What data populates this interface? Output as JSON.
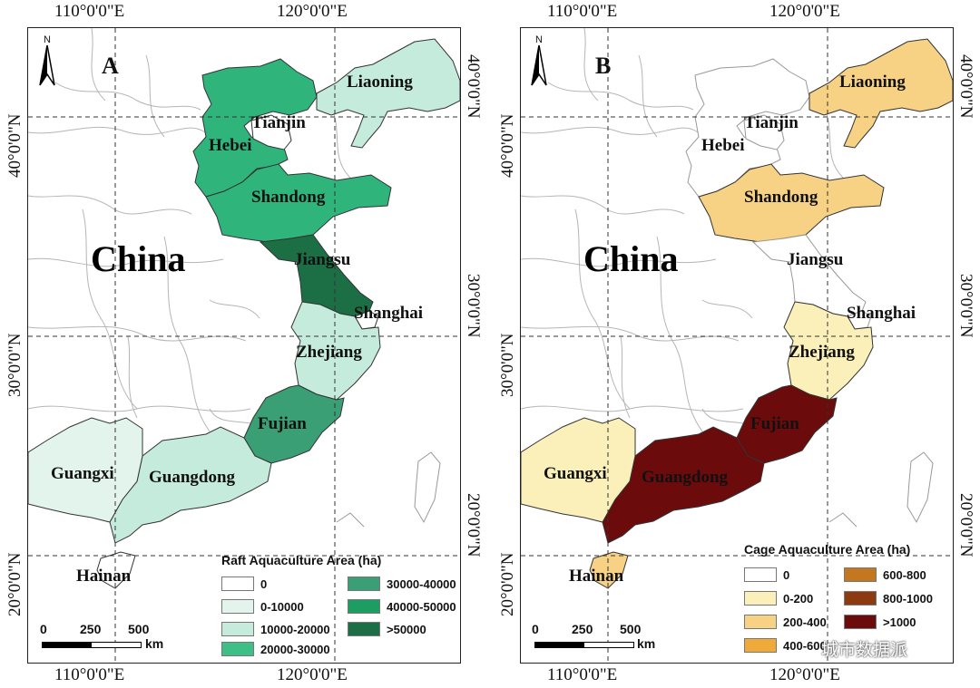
{
  "coords": {
    "lon_left": "110°0'0\"E",
    "lon_right": "120°0'0\"E",
    "lat_40": "40°0'0\"N",
    "lat_30": "30°0'0\"N",
    "lat_20": "20°0'0\"N"
  },
  "north_arrow": "N",
  "country_label": "China",
  "scale": {
    "ticks": [
      "0",
      "250",
      "500"
    ],
    "unit": "km"
  },
  "panel_a": {
    "letter": "A",
    "legend_title": "Raft Aquaculture Area (ha)",
    "legend": [
      {
        "label": "0",
        "color": "#ffffff"
      },
      {
        "label": "0-10000",
        "color": "#e3f4ec"
      },
      {
        "label": "10000-20000",
        "color": "#c5ebdc"
      },
      {
        "label": "20000-30000",
        "color": "#3dbf86"
      },
      {
        "label": "30000-40000",
        "color": "#3a9f74"
      },
      {
        "label": "40000-50000",
        "color": "#1e9d63"
      },
      {
        "label": ">50000",
        "color": "#1c6e44"
      }
    ],
    "provinces": {
      "liaoning": {
        "label": "Liaoning",
        "color": "#c5ebdc"
      },
      "tianjin": {
        "label": "Tianjin",
        "color": "#ffffff"
      },
      "hebei": {
        "label": "Hebei",
        "color": "#2fb47c"
      },
      "shandong": {
        "label": "Shandong",
        "color": "#2fb47c"
      },
      "jiangsu": {
        "label": "Jiangsu",
        "color": "#1c6e44"
      },
      "shanghai": {
        "label": "Shanghai",
        "color": "#ffffff"
      },
      "zhejiang": {
        "label": "Zhejiang",
        "color": "#c5ebdc"
      },
      "fujian": {
        "label": "Fujian",
        "color": "#3a9f74"
      },
      "guangdong": {
        "label": "Guangdong",
        "color": "#c5ebdc"
      },
      "guangxi": {
        "label": "Guangxi",
        "color": "#e3f4ec"
      },
      "hainan": {
        "label": "Hainan",
        "color": "#ffffff"
      }
    }
  },
  "panel_b": {
    "letter": "B",
    "legend_title": "Cage Aquaculture Area (ha)",
    "legend": [
      {
        "label": "0",
        "color": "#ffffff"
      },
      {
        "label": "0-200",
        "color": "#fbefba"
      },
      {
        "label": "200-400",
        "color": "#f7d184"
      },
      {
        "label": "400-600",
        "color": "#efaa3a"
      },
      {
        "label": "600-800",
        "color": "#c3771f"
      },
      {
        "label": "800-1000",
        "color": "#8e3a10"
      },
      {
        "label": ">1000",
        "color": "#6b0b0b"
      }
    ],
    "provinces": {
      "liaoning": {
        "label": "Liaoning",
        "color": "#f7d184"
      },
      "tianjin": {
        "label": "Tianjin",
        "color": "#ffffff"
      },
      "hebei": {
        "label": "Hebei",
        "color": "#ffffff"
      },
      "shandong": {
        "label": "Shandong",
        "color": "#f7d184"
      },
      "jiangsu": {
        "label": "Jiangsu",
        "color": "#ffffff"
      },
      "shanghai": {
        "label": "Shanghai",
        "color": "#ffffff"
      },
      "zhejiang": {
        "label": "Zhejiang",
        "color": "#fbefba"
      },
      "fujian": {
        "label": "Fujian",
        "color": "#6b0b0b"
      },
      "guangdong": {
        "label": "Guangdong",
        "color": "#6b0b0b"
      },
      "guangxi": {
        "label": "Guangxi",
        "color": "#fbefba"
      },
      "hainan": {
        "label": "Hainan",
        "color": "#f7d184"
      }
    }
  },
  "watermark": "城市数据派"
}
